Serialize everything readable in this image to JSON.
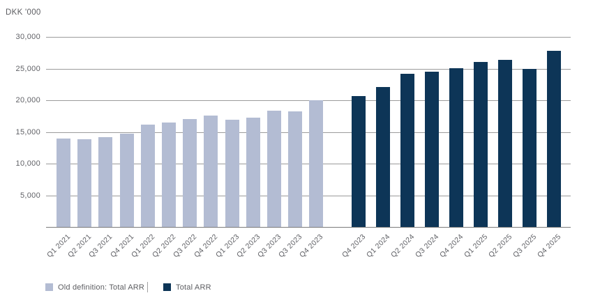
{
  "axis_title": "DKK '000",
  "chart_data": {
    "type": "bar",
    "title": "DKK '000",
    "xlabel": "",
    "ylabel": "DKK '000",
    "ylim": [
      0,
      30000
    ],
    "grid": true,
    "legend_position": "bottom-left",
    "yticks": [
      5000,
      10000,
      15000,
      20000,
      25000,
      30000
    ],
    "ytick_labels": [
      "5,000",
      "10,000",
      "15,000",
      "20,000",
      "25,000",
      "30,000"
    ],
    "series": [
      {
        "name": "Old definition: Total ARR",
        "color": "#b3bcd3",
        "categories": [
          "Q1 2021",
          "Q2 2021",
          "Q3 2021",
          "Q4 2021",
          "Q1 2022",
          "Q2 2022",
          "Q3 2022",
          "Q4 2022",
          "Q1 2023",
          "Q2 2023",
          "Q3 2023",
          "Q3 2023",
          "Q4 2023"
        ],
        "values": [
          14000,
          13800,
          14200,
          14700,
          16100,
          16500,
          17000,
          17600,
          16900,
          17200,
          18300,
          18200,
          20000
        ]
      },
      {
        "name": "Total ARR",
        "color": "#0d3557",
        "categories": [
          "Q4 2023",
          "Q1 2024",
          "Q2 2024",
          "Q3 2024",
          "Q4 2024",
          "Q1 2025",
          "Q2 2025",
          "Q3 2025",
          "Q4 2025"
        ],
        "values": [
          20700,
          22100,
          24200,
          24500,
          25100,
          26000,
          26400,
          25000,
          27800
        ]
      }
    ]
  },
  "legend": {
    "items": [
      {
        "label": "Old definition: Total ARR",
        "color": "#b3bcd3"
      },
      {
        "label": "Total ARR",
        "color": "#0d3557"
      }
    ]
  }
}
